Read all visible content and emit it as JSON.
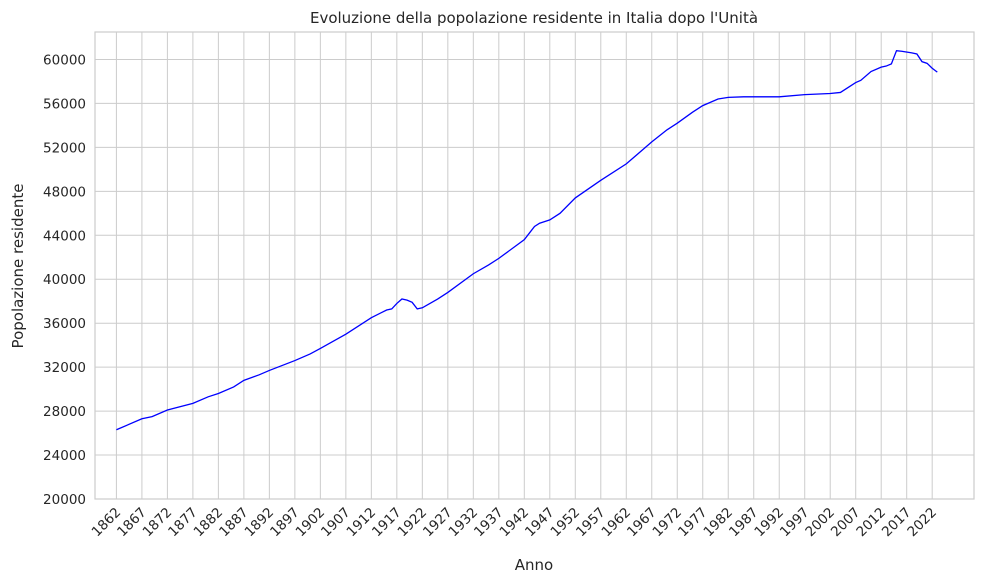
{
  "chart_data": {
    "type": "line",
    "title": "Evoluzione della popolazione residente in Italia dopo l'Unità",
    "xlabel": "Anno",
    "ylabel": "Popolazione residente",
    "xlim": [
      1857.8,
      2030.2
    ],
    "ylim": [
      20000,
      62500
    ],
    "xticks": [
      1862,
      1867,
      1872,
      1877,
      1882,
      1887,
      1892,
      1897,
      1902,
      1907,
      1912,
      1917,
      1922,
      1927,
      1932,
      1937,
      1942,
      1947,
      1952,
      1957,
      1962,
      1967,
      1972,
      1977,
      1982,
      1987,
      1992,
      1997,
      2002,
      2007,
      2012,
      2017,
      2022
    ],
    "yticks": [
      20000,
      24000,
      28000,
      32000,
      36000,
      40000,
      44000,
      48000,
      52000,
      56000,
      60000
    ],
    "grid": true,
    "series": [
      {
        "color": "#0000ff",
        "x": [
          1862,
          1867,
          1869,
          1872,
          1877,
          1880,
          1882,
          1885,
          1887,
          1890,
          1892,
          1897,
          1900,
          1902,
          1907,
          1912,
          1915,
          1916,
          1917,
          1918,
          1919,
          1920,
          1921,
          1922,
          1925,
          1927,
          1932,
          1935,
          1937,
          1942,
          1943,
          1944,
          1945,
          1947,
          1949,
          1952,
          1957,
          1962,
          1967,
          1970,
          1972,
          1975,
          1977,
          1980,
          1982,
          1985,
          1987,
          1992,
          1997,
          2002,
          2004,
          2007,
          2008,
          2010,
          2012,
          2013,
          2014,
          2015,
          2016,
          2018,
          2019,
          2020,
          2021,
          2022,
          2023
        ],
        "values": [
          26300,
          27300,
          27500,
          28100,
          28700,
          29300,
          29600,
          30200,
          30800,
          31300,
          31700,
          32600,
          33200,
          33700,
          35000,
          36500,
          37200,
          37300,
          37800,
          38200,
          38100,
          37900,
          37300,
          37400,
          38200,
          38800,
          40500,
          41300,
          41900,
          43600,
          44200,
          44800,
          45100,
          45400,
          46000,
          47400,
          49000,
          50500,
          52500,
          53600,
          54200,
          55200,
          55800,
          56400,
          56550,
          56600,
          56600,
          56600,
          56800,
          56900,
          57000,
          57900,
          58100,
          58900,
          59300,
          59400,
          59600,
          60800,
          60750,
          60600,
          60500,
          59800,
          59650,
          59200,
          58850
        ]
      }
    ]
  }
}
